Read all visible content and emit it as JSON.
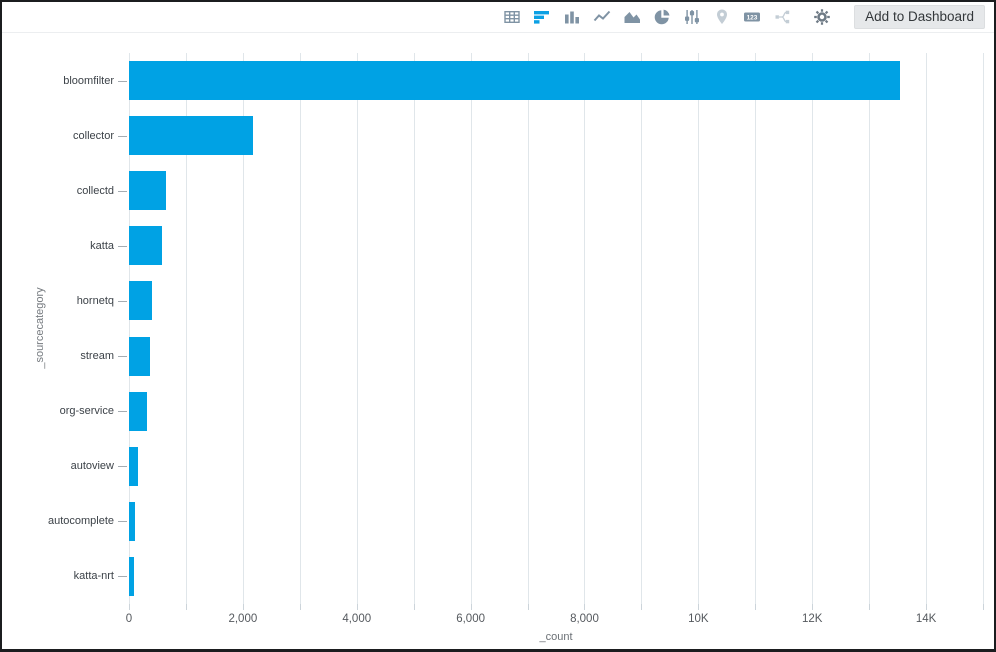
{
  "toolbar": {
    "add_to_dashboard_label": "Add to Dashboard",
    "icons": [
      {
        "name": "table-icon",
        "state": "normal"
      },
      {
        "name": "horizontal-bar-chart-icon",
        "state": "active"
      },
      {
        "name": "column-chart-icon",
        "state": "normal"
      },
      {
        "name": "line-chart-icon",
        "state": "normal"
      },
      {
        "name": "area-chart-icon",
        "state": "normal"
      },
      {
        "name": "pie-chart-icon",
        "state": "normal"
      },
      {
        "name": "sliders-icon",
        "state": "normal"
      },
      {
        "name": "map-pin-icon",
        "state": "disabled"
      },
      {
        "name": "numeric-123-icon",
        "state": "normal"
      },
      {
        "name": "node-diagram-icon",
        "state": "disabled"
      },
      {
        "name": "gear-icon",
        "state": "normal"
      }
    ]
  },
  "colors": {
    "bar": "#00a2e4",
    "active_icon": "#0ba0e4",
    "icon": "#7f93a4",
    "disabled_icon": "#c3cdd5",
    "gridline": "#e0e6ea"
  },
  "chart_data": {
    "type": "bar",
    "orientation": "horizontal",
    "title": "",
    "categories": [
      "bloomfilter",
      "collector",
      "collectd",
      "katta",
      "hornetq",
      "stream",
      "org-service",
      "autoview",
      "autocomplete",
      "katta-nrt"
    ],
    "values": [
      13550,
      2180,
      650,
      580,
      400,
      370,
      320,
      155,
      100,
      85
    ],
    "xlabel": "_count",
    "ylabel": "_sourcecategory",
    "xlim": [
      0,
      15000
    ],
    "grid": true,
    "grid_step": 1000,
    "legend": false,
    "bar_color": "#00a2e4",
    "x_ticks": [
      {
        "value": 0,
        "label": "0"
      },
      {
        "value": 2000,
        "label": "2,000"
      },
      {
        "value": 4000,
        "label": "4,000"
      },
      {
        "value": 6000,
        "label": "6,000"
      },
      {
        "value": 8000,
        "label": "8,000"
      },
      {
        "value": 10000,
        "label": "10K"
      },
      {
        "value": 12000,
        "label": "12K"
      },
      {
        "value": 14000,
        "label": "14K"
      }
    ]
  }
}
